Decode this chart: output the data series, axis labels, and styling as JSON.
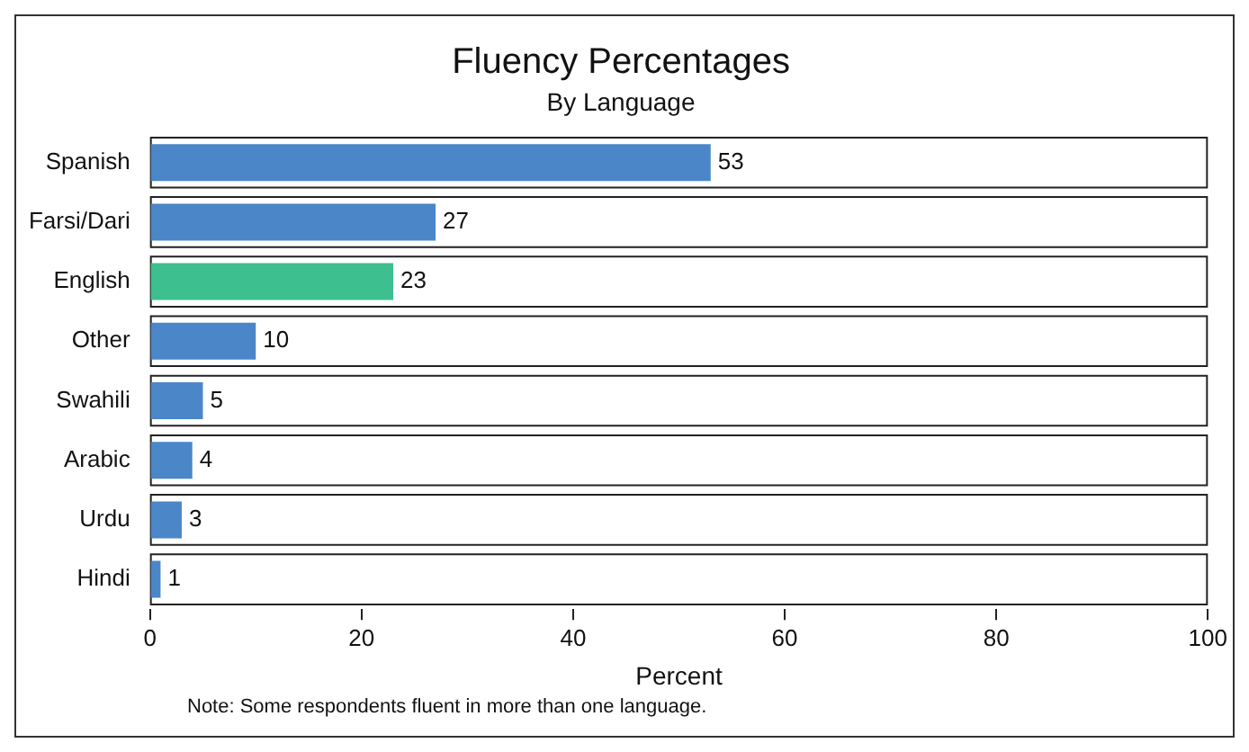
{
  "chart_data": {
    "type": "bar",
    "orientation": "horizontal",
    "title": "Fluency Percentages",
    "subtitle": "By Language",
    "xlabel": "Percent",
    "categories": [
      "Spanish",
      "Farsi/Dari",
      "English",
      "Other",
      "Swahili",
      "Arabic",
      "Urdu",
      "Hindi"
    ],
    "values": [
      53,
      27,
      23,
      10,
      5,
      4,
      3,
      1
    ],
    "colors": [
      "#4a86c8",
      "#4a86c8",
      "#3dbf8f",
      "#4a86c8",
      "#4a86c8",
      "#4a86c8",
      "#4a86c8",
      "#4a86c8"
    ],
    "xlim": [
      0,
      100
    ],
    "xticks": [
      0,
      20,
      40,
      60,
      80,
      100
    ],
    "grid": false,
    "legend": false,
    "data_labels": true,
    "annotations": [
      "Note: Some respondents fluent in more than one language."
    ]
  }
}
